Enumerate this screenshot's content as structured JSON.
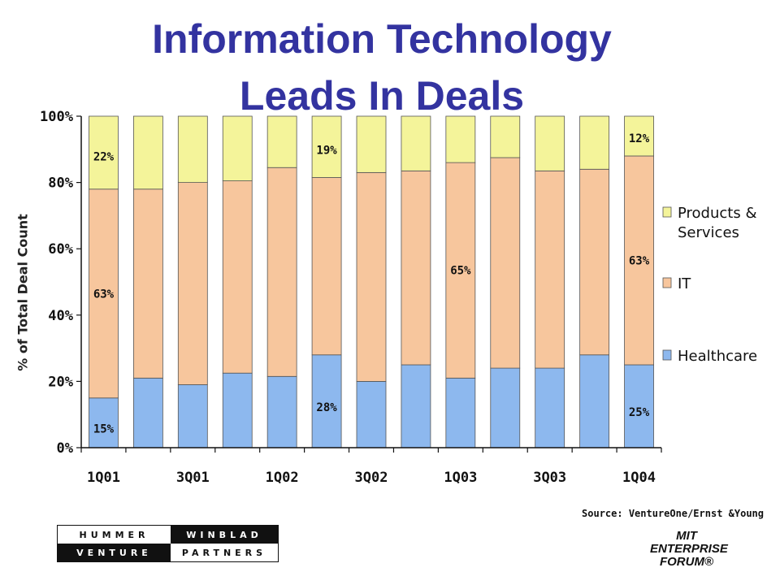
{
  "title": {
    "line1": "Information Technology",
    "line2": "Leads In Deals"
  },
  "source": "Source: VentureOne/Ernst &Young",
  "logos": {
    "hummer": "HUMMER",
    "winblad": "WINBLAD",
    "venture": "VENTURE",
    "partners": "PARTNERS",
    "mit_line1": "MIT",
    "mit_line2": "ENTERPRISE",
    "mit_line3": "FORUM®"
  },
  "chart_data": {
    "type": "bar",
    "stacked": true,
    "ylabel": "% of Total Deal Count",
    "ylim": [
      0,
      100
    ],
    "yticks": [
      "0%",
      "20%",
      "40%",
      "60%",
      "80%",
      "100%"
    ],
    "categories": [
      "1Q01",
      "2Q01",
      "3Q01",
      "4Q01",
      "1Q02",
      "2Q02",
      "3Q02",
      "4Q02",
      "1Q03",
      "2Q03",
      "3Q03",
      "4Q03",
      "1Q04"
    ],
    "shown_tick_labels": [
      "1Q01",
      "3Q01",
      "1Q02",
      "3Q02",
      "1Q03",
      "3Q03",
      "1Q04"
    ],
    "series": [
      {
        "name": "Healthcare",
        "color": "#8db8ee",
        "values": [
          15,
          21,
          19,
          22.5,
          21.5,
          28,
          20,
          25,
          21,
          24,
          24,
          28,
          25
        ]
      },
      {
        "name": "IT",
        "color": "#f7c69d",
        "values": [
          63,
          57,
          61,
          58,
          63,
          53.5,
          63,
          58.5,
          65,
          63.5,
          59.5,
          56,
          63
        ]
      },
      {
        "name": "Products & Services",
        "color": "#f4f49a",
        "values": [
          22,
          22,
          20,
          19.5,
          15.5,
          18.5,
          17,
          16.5,
          14,
          12.5,
          16.5,
          16,
          12
        ]
      }
    ],
    "data_labels": [
      {
        "category": "1Q01",
        "series": "Healthcare",
        "text": "15%"
      },
      {
        "category": "1Q01",
        "series": "IT",
        "text": "63%"
      },
      {
        "category": "1Q01",
        "series": "Products & Services",
        "text": "22%"
      },
      {
        "category": "2Q02",
        "series": "Healthcare",
        "text": "28%"
      },
      {
        "category": "2Q02",
        "series": "Products & Services",
        "text": "19%"
      },
      {
        "category": "1Q03",
        "series": "IT",
        "text": "65%"
      },
      {
        "category": "1Q04",
        "series": "Healthcare",
        "text": "25%"
      },
      {
        "category": "1Q04",
        "series": "IT",
        "text": "63%"
      },
      {
        "category": "1Q04",
        "series": "Products & Services",
        "text": "12%"
      }
    ],
    "legend": {
      "position": "right",
      "order": [
        "Products & Services",
        "IT",
        "Healthcare"
      ],
      "lines": {
        "Products & Services": [
          "Products &",
          "Services"
        ],
        "IT": [
          "IT"
        ],
        "Healthcare": [
          "Healthcare"
        ]
      }
    }
  }
}
